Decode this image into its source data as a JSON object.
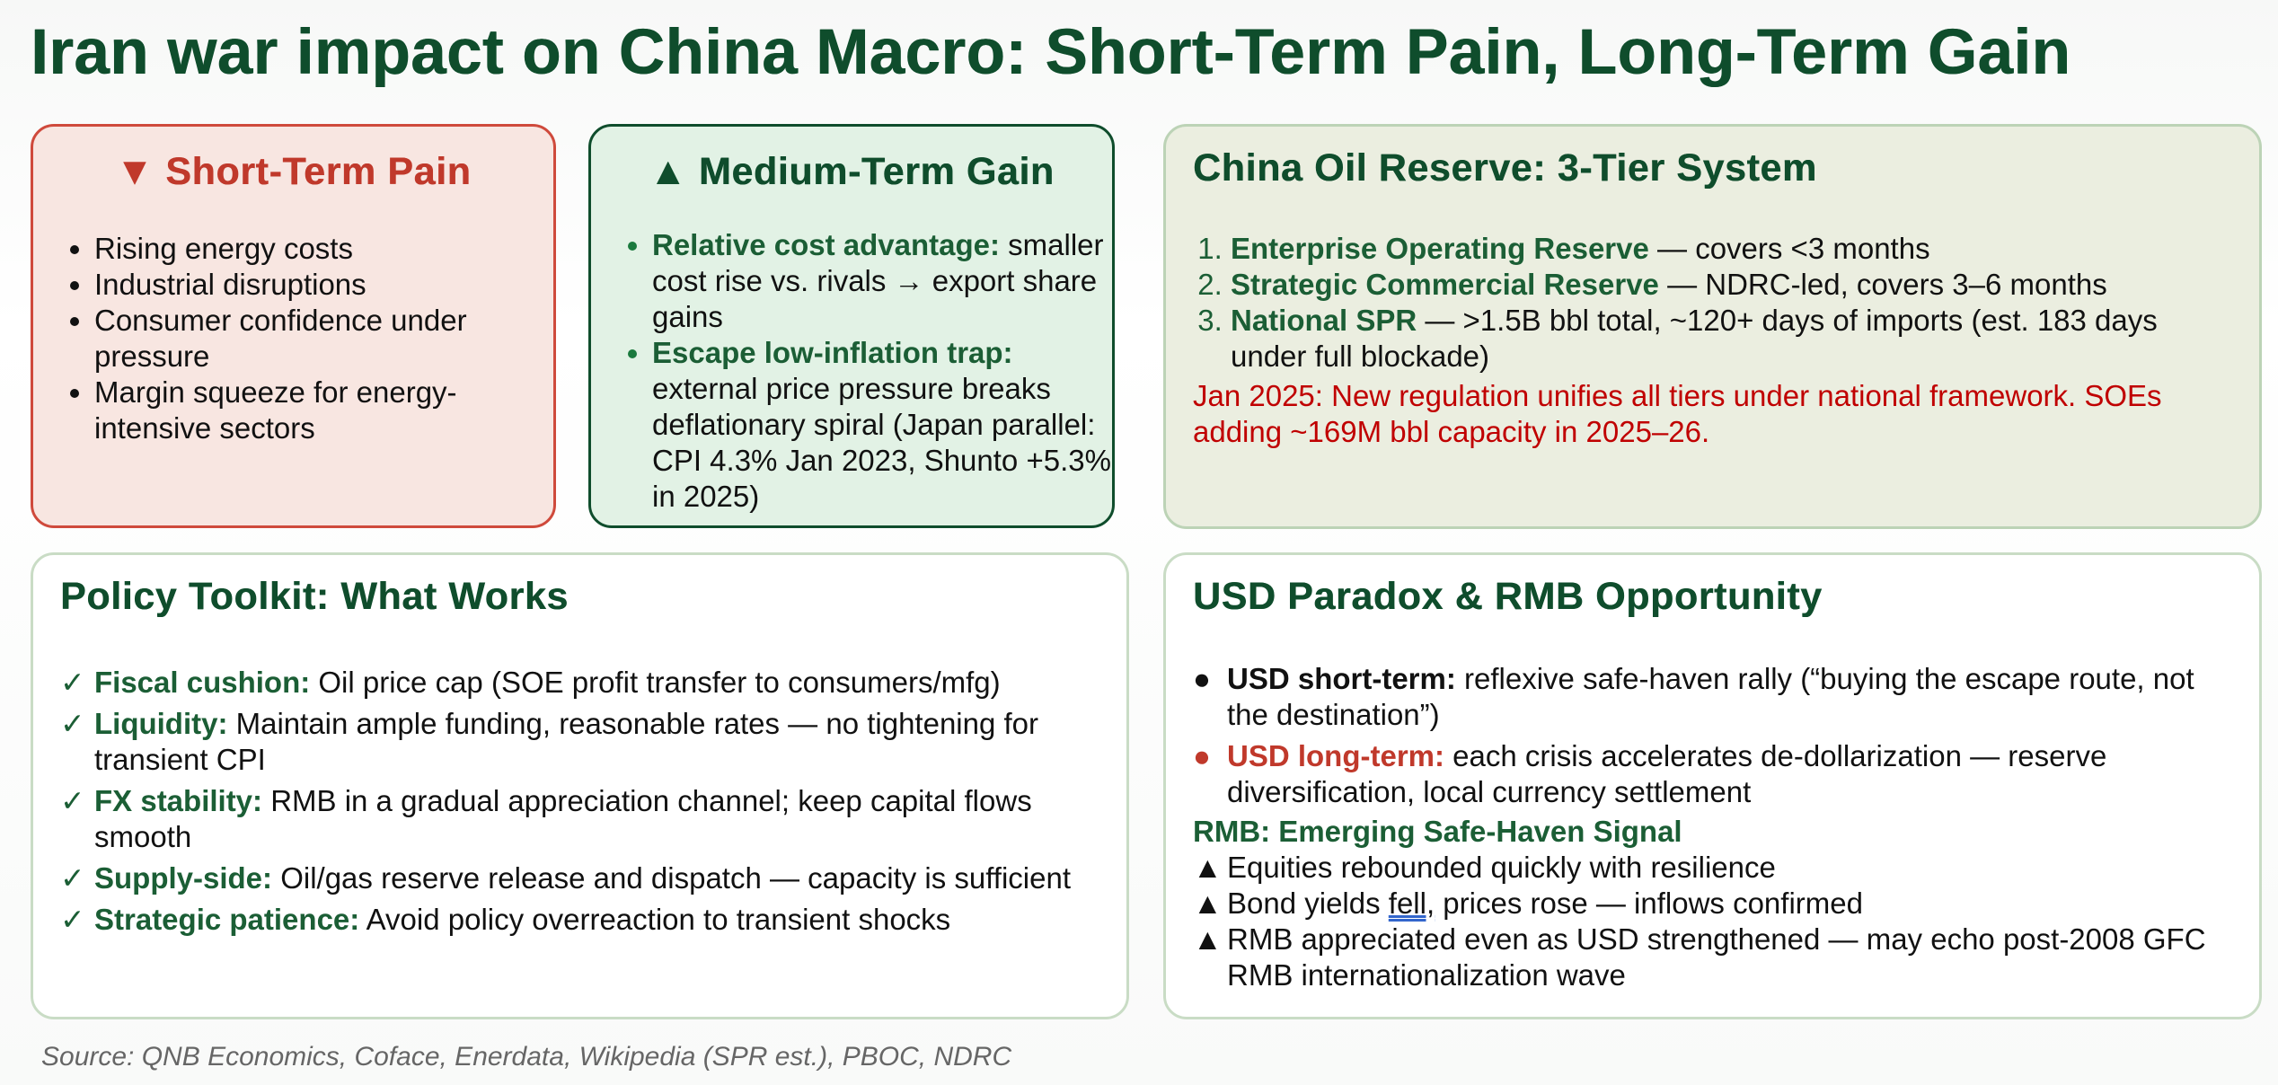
{
  "title": "Iran war impact on China Macro: Short-Term Pain, Long-Term Gain",
  "short_term": {
    "heading": "▼ Short-Term Pain",
    "items": [
      "Rising energy costs",
      "Industrial disruptions",
      "Consumer confidence under pressure",
      "Margin squeeze for energy-intensive sectors"
    ]
  },
  "medium_term": {
    "heading": "▲ Medium-Term Gain",
    "items": [
      {
        "label": "Relative cost advantage:",
        "text": " smaller cost rise vs. rivals → export share gains"
      },
      {
        "label": "Escape low-inflation trap:",
        "text": " external price pressure breaks deflationary spiral (Japan parallel: CPI 4.3% Jan 2023, Shunto +5.3% in 2025)"
      }
    ]
  },
  "oil_reserve": {
    "heading": "China Oil Reserve: 3-Tier System",
    "items": [
      {
        "label": "Enterprise Operating Reserve",
        "text": " — covers <3 months"
      },
      {
        "label": "Strategic Commercial Reserve",
        "text": " — NDRC-led, covers 3–6 months"
      },
      {
        "label": "National SPR",
        "text": " — >1.5B bbl total, ~120+ days of imports (est. 183 days under full blockade)"
      }
    ],
    "note": "Jan 2025: New regulation unifies all tiers under national framework. SOEs adding ~169M bbl capacity in 2025–26."
  },
  "policy": {
    "heading": "Policy Toolkit: What Works",
    "check": "✓",
    "items": [
      {
        "label": "Fiscal cushion:",
        "text": " Oil price cap (SOE profit transfer to consumers/mfg)"
      },
      {
        "label": "Liquidity:",
        "text": " Maintain ample funding, reasonable rates — no tightening for transient CPI"
      },
      {
        "label": "FX stability:",
        "text": " RMB in a gradual appreciation channel; keep capital flows smooth"
      },
      {
        "label": "Supply-side:",
        "text": " Oil/gas reserve release and dispatch — capacity is sufficient"
      },
      {
        "label": "Strategic patience:",
        "text": " Avoid policy overreaction to transient shocks"
      }
    ]
  },
  "usd": {
    "heading": "USD Paradox & RMB Opportunity",
    "bullet": "●",
    "items": [
      {
        "label": "USD short-term:",
        "text": " reflexive safe-haven rally (“buying the escape route, not the destination”)"
      },
      {
        "label": "USD long-term:",
        "text": " each crisis accelerates de-dollarization — reserve diversification, local currency settlement"
      }
    ],
    "rmb_heading": "RMB: Emerging Safe-Haven Signal",
    "arrow": "▲",
    "signals": {
      "s1": "Equities rebounded quickly with resilience",
      "s2_pre": "Bond yields ",
      "s2_fell": "fell,",
      "s2_post": " prices rose — inflows confirmed",
      "s3": "RMB appreciated even as USD strengthened — may echo post-2008 GFC RMB internationalization wave"
    }
  },
  "source": "Source: QNB Economics, Coface, Enerdata, Wikipedia (SPR est.), PBOC, NDRC",
  "colors": {
    "dark_green": "#0f4d2c",
    "red": "#c0392b",
    "note_red": "#c00000"
  }
}
